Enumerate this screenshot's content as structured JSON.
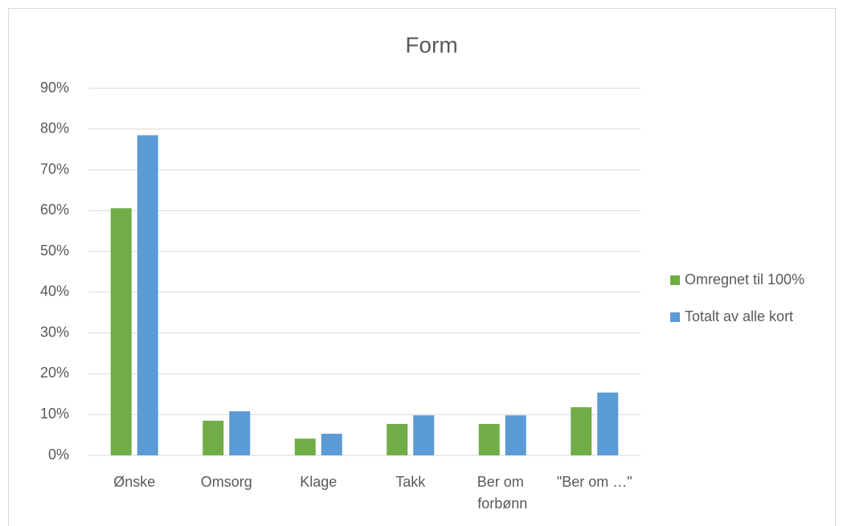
{
  "chart_data": {
    "type": "bar",
    "title": "Form",
    "categories": [
      "Ønske",
      "Omsorg",
      "Klage",
      "Takk",
      "Ber om forbønn",
      "\"Ber om …\""
    ],
    "series": [
      {
        "name": "Omregnet til 100%",
        "color": "#70ad47",
        "values": [
          60.6,
          8.5,
          4.1,
          7.7,
          7.7,
          11.8
        ]
      },
      {
        "name": "Totalt av alle kort",
        "color": "#5b9bd5",
        "values": [
          78.5,
          10.8,
          5.3,
          9.8,
          9.8,
          15.4
        ]
      }
    ],
    "ylim": [
      0,
      90
    ],
    "yticks": [
      {
        "value": 0,
        "label": "0%"
      },
      {
        "value": 10,
        "label": "10%"
      },
      {
        "value": 20,
        "label": "20%"
      },
      {
        "value": 30,
        "label": "30%"
      },
      {
        "value": 40,
        "label": "40%"
      },
      {
        "value": 50,
        "label": "50%"
      },
      {
        "value": 60,
        "label": "60%"
      },
      {
        "value": 70,
        "label": "70%"
      },
      {
        "value": 80,
        "label": "80%"
      },
      {
        "value": 90,
        "label": "90%"
      }
    ],
    "grid": true,
    "legend": "right"
  }
}
